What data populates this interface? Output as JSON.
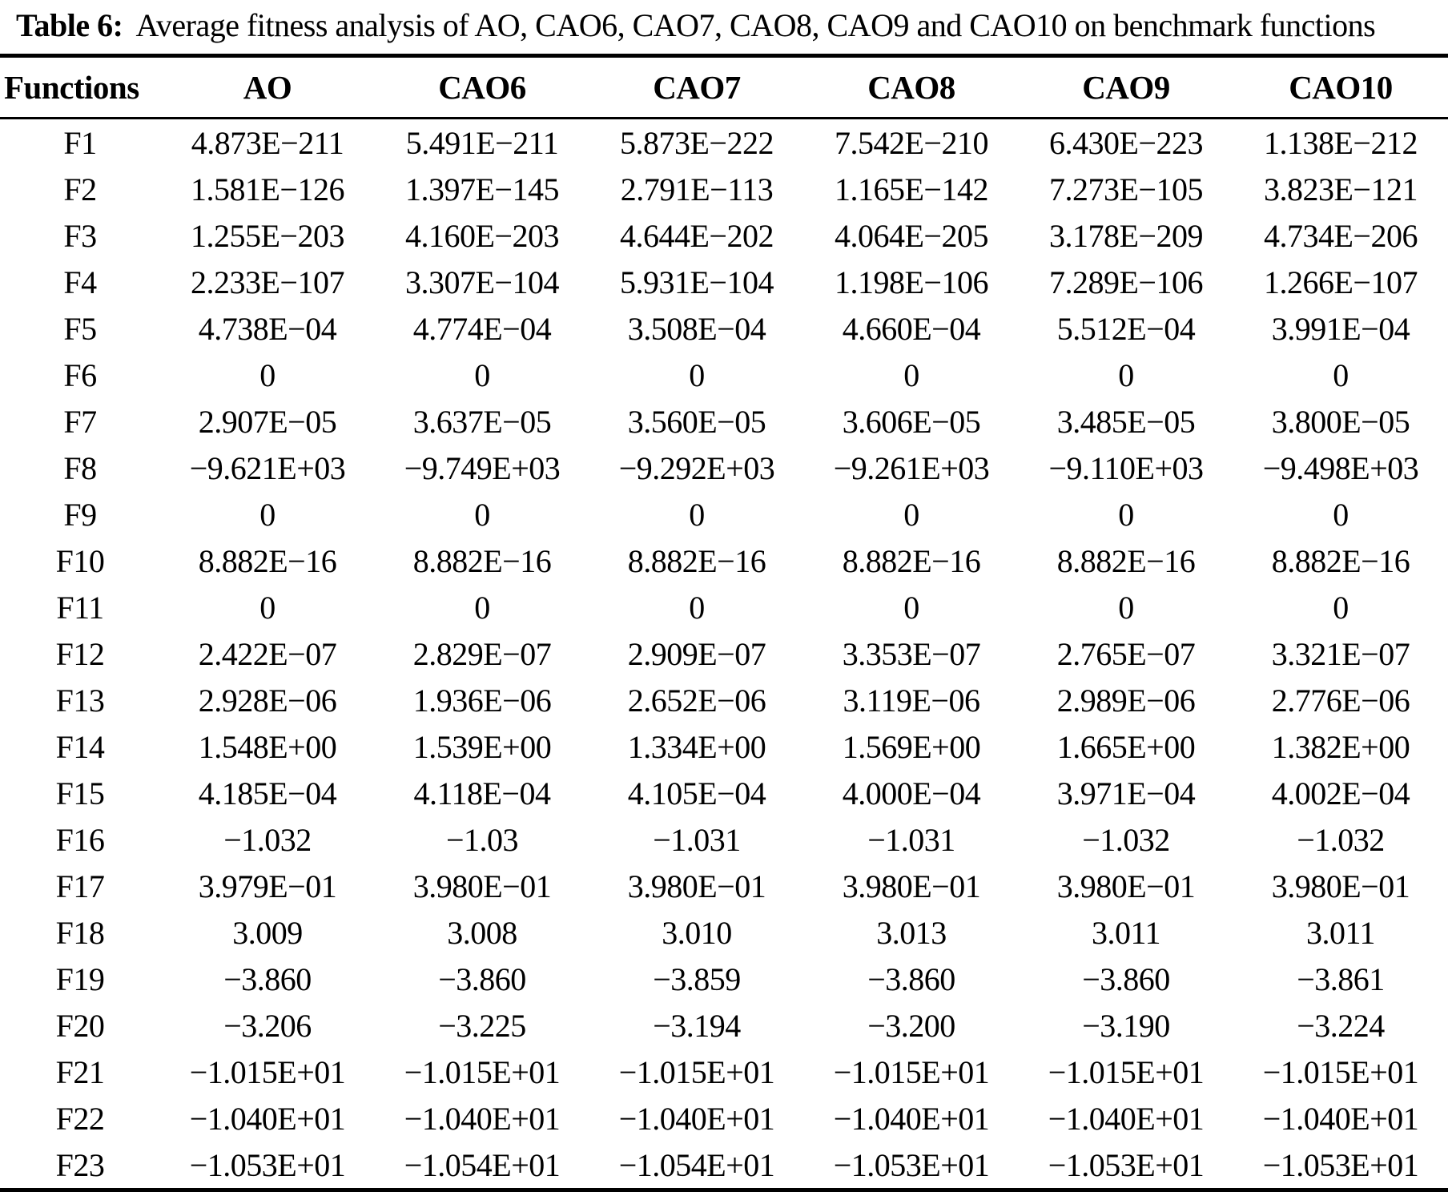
{
  "table": {
    "caption_label": "Table 6:",
    "caption_text": "Average fitness analysis of AO, CAO6, CAO7, CAO8, CAO9 and CAO10 on benchmark functions",
    "columns": [
      "Functions",
      "AO",
      "CAO6",
      "CAO7",
      "CAO8",
      "CAO9",
      "CAO10"
    ],
    "rows": [
      {
        "function": "F1",
        "values": [
          "4.873E−211",
          "5.491E−211",
          "5.873E−222",
          "7.542E−210",
          "6.430E−223",
          "1.138E−212"
        ]
      },
      {
        "function": "F2",
        "values": [
          "1.581E−126",
          "1.397E−145",
          "2.791E−113",
          "1.165E−142",
          "7.273E−105",
          "3.823E−121"
        ]
      },
      {
        "function": "F3",
        "values": [
          "1.255E−203",
          "4.160E−203",
          "4.644E−202",
          "4.064E−205",
          "3.178E−209",
          "4.734E−206"
        ]
      },
      {
        "function": "F4",
        "values": [
          "2.233E−107",
          "3.307E−104",
          "5.931E−104",
          "1.198E−106",
          "7.289E−106",
          "1.266E−107"
        ]
      },
      {
        "function": "F5",
        "values": [
          "4.738E−04",
          "4.774E−04",
          "3.508E−04",
          "4.660E−04",
          "5.512E−04",
          "3.991E−04"
        ]
      },
      {
        "function": "F6",
        "values": [
          "0",
          "0",
          "0",
          "0",
          "0",
          "0"
        ]
      },
      {
        "function": "F7",
        "values": [
          "2.907E−05",
          "3.637E−05",
          "3.560E−05",
          "3.606E−05",
          "3.485E−05",
          "3.800E−05"
        ]
      },
      {
        "function": "F8",
        "values": [
          "−9.621E+03",
          "−9.749E+03",
          "−9.292E+03",
          "−9.261E+03",
          "−9.110E+03",
          "−9.498E+03"
        ]
      },
      {
        "function": "F9",
        "values": [
          "0",
          "0",
          "0",
          "0",
          "0",
          "0"
        ]
      },
      {
        "function": "F10",
        "values": [
          "8.882E−16",
          "8.882E−16",
          "8.882E−16",
          "8.882E−16",
          "8.882E−16",
          "8.882E−16"
        ]
      },
      {
        "function": "F11",
        "values": [
          "0",
          "0",
          "0",
          "0",
          "0",
          "0"
        ]
      },
      {
        "function": "F12",
        "values": [
          "2.422E−07",
          "2.829E−07",
          "2.909E−07",
          "3.353E−07",
          "2.765E−07",
          "3.321E−07"
        ]
      },
      {
        "function": "F13",
        "values": [
          "2.928E−06",
          "1.936E−06",
          "2.652E−06",
          "3.119E−06",
          "2.989E−06",
          "2.776E−06"
        ]
      },
      {
        "function": "F14",
        "values": [
          "1.548E+00",
          "1.539E+00",
          "1.334E+00",
          "1.569E+00",
          "1.665E+00",
          "1.382E+00"
        ]
      },
      {
        "function": "F15",
        "values": [
          "4.185E−04",
          "4.118E−04",
          "4.105E−04",
          "4.000E−04",
          "3.971E−04",
          "4.002E−04"
        ]
      },
      {
        "function": "F16",
        "values": [
          "−1.032",
          "−1.03",
          "−1.031",
          "−1.031",
          "−1.032",
          "−1.032"
        ]
      },
      {
        "function": "F17",
        "values": [
          "3.979E−01",
          "3.980E−01",
          "3.980E−01",
          "3.980E−01",
          "3.980E−01",
          "3.980E−01"
        ]
      },
      {
        "function": "F18",
        "values": [
          "3.009",
          "3.008",
          "3.010",
          "3.013",
          "3.011",
          "3.011"
        ]
      },
      {
        "function": "F19",
        "values": [
          "−3.860",
          "−3.860",
          "−3.859",
          "−3.860",
          "−3.860",
          "−3.861"
        ]
      },
      {
        "function": "F20",
        "values": [
          "−3.206",
          "−3.225",
          "−3.194",
          "−3.200",
          "−3.190",
          "−3.224"
        ]
      },
      {
        "function": "F21",
        "values": [
          "−1.015E+01",
          "−1.015E+01",
          "−1.015E+01",
          "−1.015E+01",
          "−1.015E+01",
          "−1.015E+01"
        ]
      },
      {
        "function": "F22",
        "values": [
          "−1.040E+01",
          "−1.040E+01",
          "−1.040E+01",
          "−1.040E+01",
          "−1.040E+01",
          "−1.040E+01"
        ]
      },
      {
        "function": "F23",
        "values": [
          "−1.053E+01",
          "−1.054E+01",
          "−1.054E+01",
          "−1.053E+01",
          "−1.053E+01",
          "−1.053E+01"
        ]
      }
    ]
  }
}
